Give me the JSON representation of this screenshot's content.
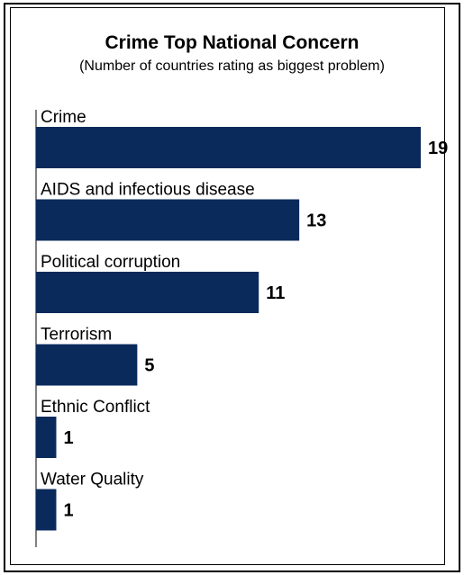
{
  "chart_data": {
    "type": "bar",
    "orientation": "horizontal",
    "title": "Crime Top National Concern",
    "subtitle": "(Number of countries rating as biggest problem)",
    "categories": [
      "Crime",
      "AIDS and infectious disease",
      "Political corruption",
      "Terrorism",
      "Ethnic Conflict",
      "Water Quality"
    ],
    "values": [
      19,
      13,
      11,
      5,
      1,
      1
    ],
    "value_labels": [
      "19",
      "13",
      "11",
      "5",
      "1",
      "1"
    ],
    "xlim": [
      0,
      19
    ],
    "grid": false,
    "legend": "none",
    "bar_color": "#0b2a5c"
  }
}
